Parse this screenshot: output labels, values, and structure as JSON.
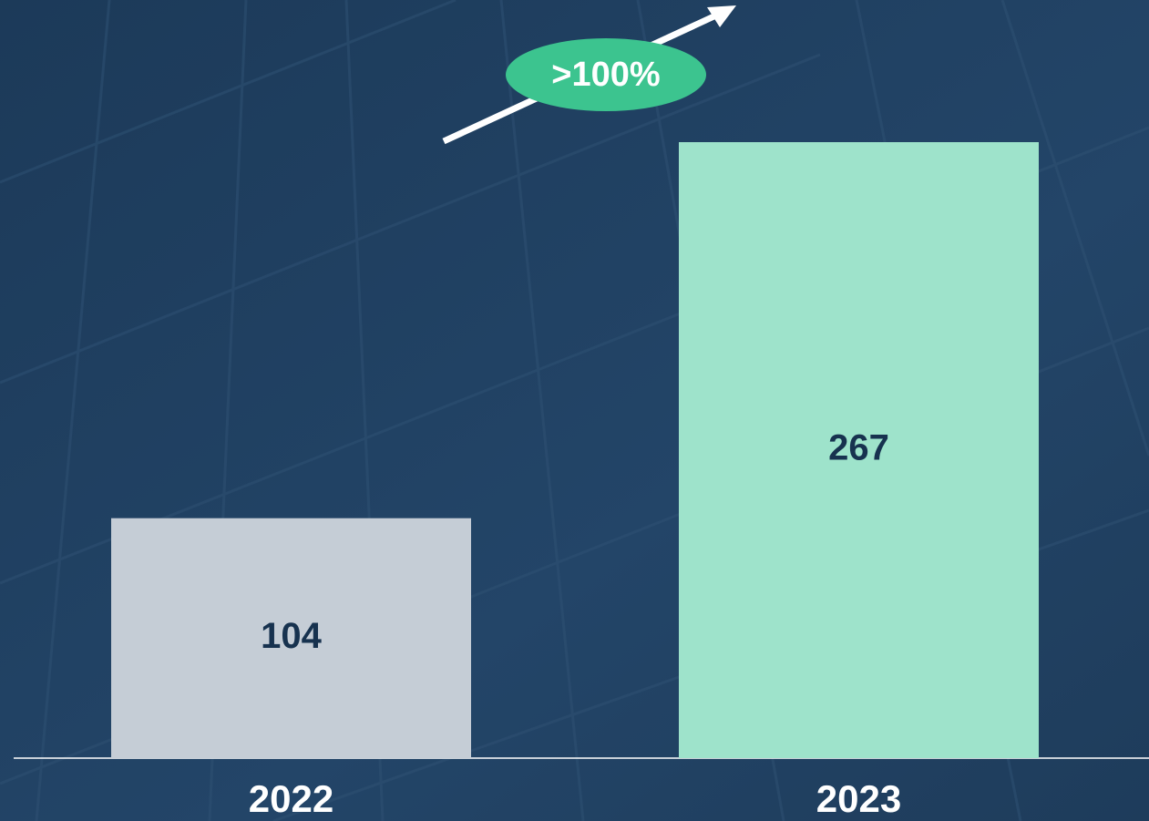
{
  "chart_data": {
    "type": "bar",
    "categories": [
      "2022",
      "2023"
    ],
    "values": [
      104,
      267
    ],
    "colors": [
      "#c5cdd6",
      "#9ee3cb"
    ],
    "annotation": ">100%"
  }
}
